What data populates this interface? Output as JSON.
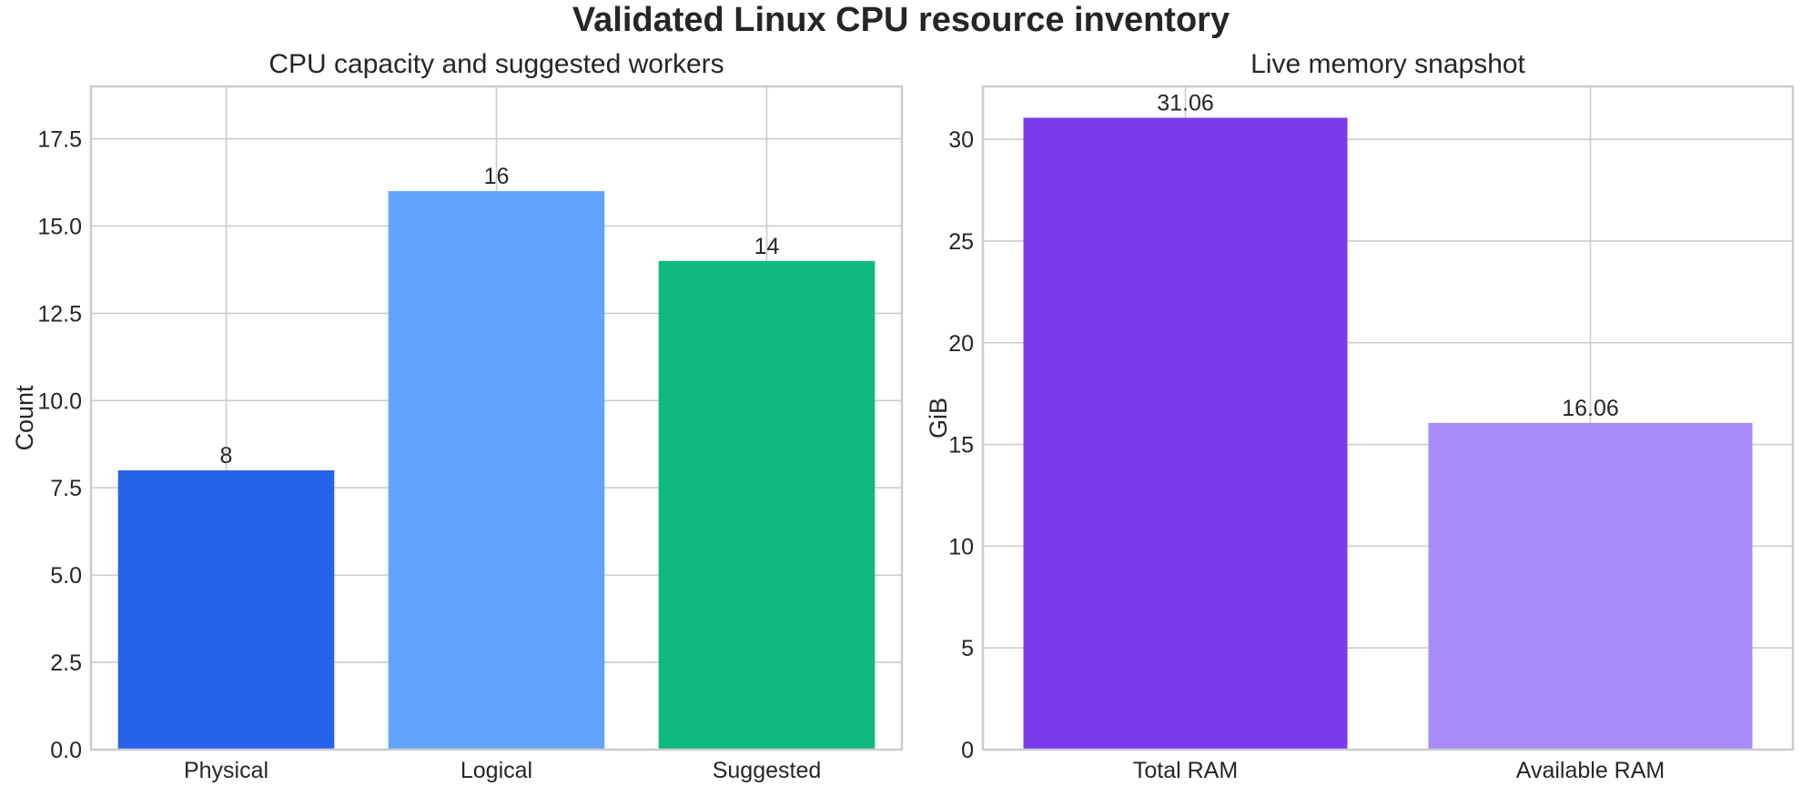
{
  "figure": {
    "suptitle": "Validated Linux CPU resource inventory"
  },
  "chart_data": [
    {
      "type": "bar",
      "title": "CPU capacity and suggested workers",
      "xlabel": "",
      "ylabel": "Count",
      "categories": [
        "Physical",
        "Logical",
        "Suggested"
      ],
      "values": [
        8,
        16,
        14
      ],
      "value_labels": [
        "8",
        "16",
        "14"
      ],
      "colors": [
        "#2563eb",
        "#60a5fa",
        "#10b981"
      ],
      "ylim": [
        0,
        19
      ],
      "yticks": [
        0,
        2.5,
        5,
        7.5,
        10,
        12.5,
        15,
        17.5
      ],
      "ytick_labels": [
        "0.0",
        "2.5",
        "5.0",
        "7.5",
        "10.0",
        "12.5",
        "15.0",
        "17.5"
      ],
      "grid": true,
      "legend": "none"
    },
    {
      "type": "bar",
      "title": "Live memory snapshot",
      "xlabel": "",
      "ylabel": "GiB",
      "categories": [
        "Total RAM",
        "Available RAM"
      ],
      "values": [
        31.06,
        16.06
      ],
      "value_labels": [
        "31.06",
        "16.06"
      ],
      "colors": [
        "#7c3aed",
        "#a78bfa"
      ],
      "ylim": [
        0,
        32.6
      ],
      "yticks": [
        0,
        5,
        10,
        15,
        20,
        25,
        30
      ],
      "ytick_labels": [
        "0",
        "5",
        "10",
        "15",
        "20",
        "25",
        "30"
      ],
      "grid": true,
      "legend": "none"
    }
  ]
}
